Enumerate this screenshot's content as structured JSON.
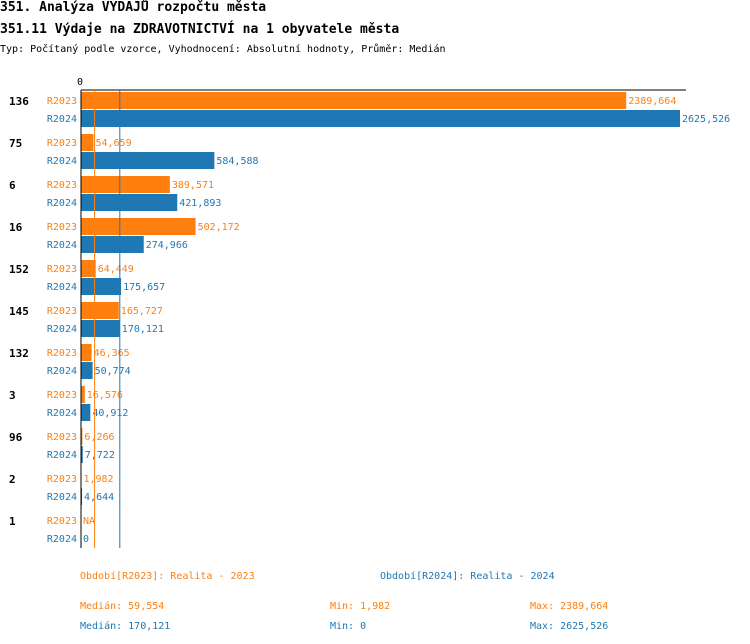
{
  "header": {
    "title": "351. Analýza VÝDAJŮ rozpočtu města",
    "subtitle": "351.11 Výdaje na ZDRAVOTNICTVÍ na 1 obyvatele města",
    "type_line": "Typ: Počítaný podle vzorce, Vyhodnocení: Absolutní hodnoty, Průměr: Medián"
  },
  "chart_data": {
    "type": "bar",
    "orientation": "horizontal",
    "axis_zero_label": "0",
    "xlim": [
      0,
      2625.526
    ],
    "categories": [
      "136",
      "75",
      "6",
      "16",
      "152",
      "145",
      "132",
      "3",
      "96",
      "2",
      "1"
    ],
    "series": [
      {
        "name": "R2023",
        "color": "#ff7f0e",
        "values": [
          2389.664,
          54.659,
          389.571,
          502.172,
          64.449,
          165.727,
          46.365,
          16.576,
          6.266,
          1.982,
          null
        ],
        "labels": [
          "2389,664",
          "54,659",
          "389,571",
          "502,172",
          "64,449",
          "165,727",
          "46,365",
          "16,576",
          "6,266",
          "1,982",
          "NA"
        ]
      },
      {
        "name": "R2024",
        "color": "#1f77b4",
        "values": [
          2625.526,
          584.588,
          421.893,
          274.966,
          175.657,
          170.121,
          50.774,
          40.912,
          7.722,
          4.644,
          0
        ],
        "labels": [
          "2625,526",
          "584,588",
          "421,893",
          "274,966",
          "175,657",
          "170,121",
          "50,774",
          "40,912",
          "7,722",
          "4,644",
          "0"
        ]
      }
    ],
    "median_lines": {
      "R2023": 59.554,
      "R2024": 170.121
    }
  },
  "legend": {
    "r2023_period": "Období[R2023]: Realita - 2023",
    "r2024_period": "Období[R2024]: Realita - 2024",
    "r2023_median": "Medián: 59,554",
    "r2023_min": "Min: 1,982",
    "r2023_max": "Max: 2389,664",
    "r2024_median": "Medián: 170,121",
    "r2024_min": "Min: 0",
    "r2024_max": "Max: 2625,526"
  }
}
